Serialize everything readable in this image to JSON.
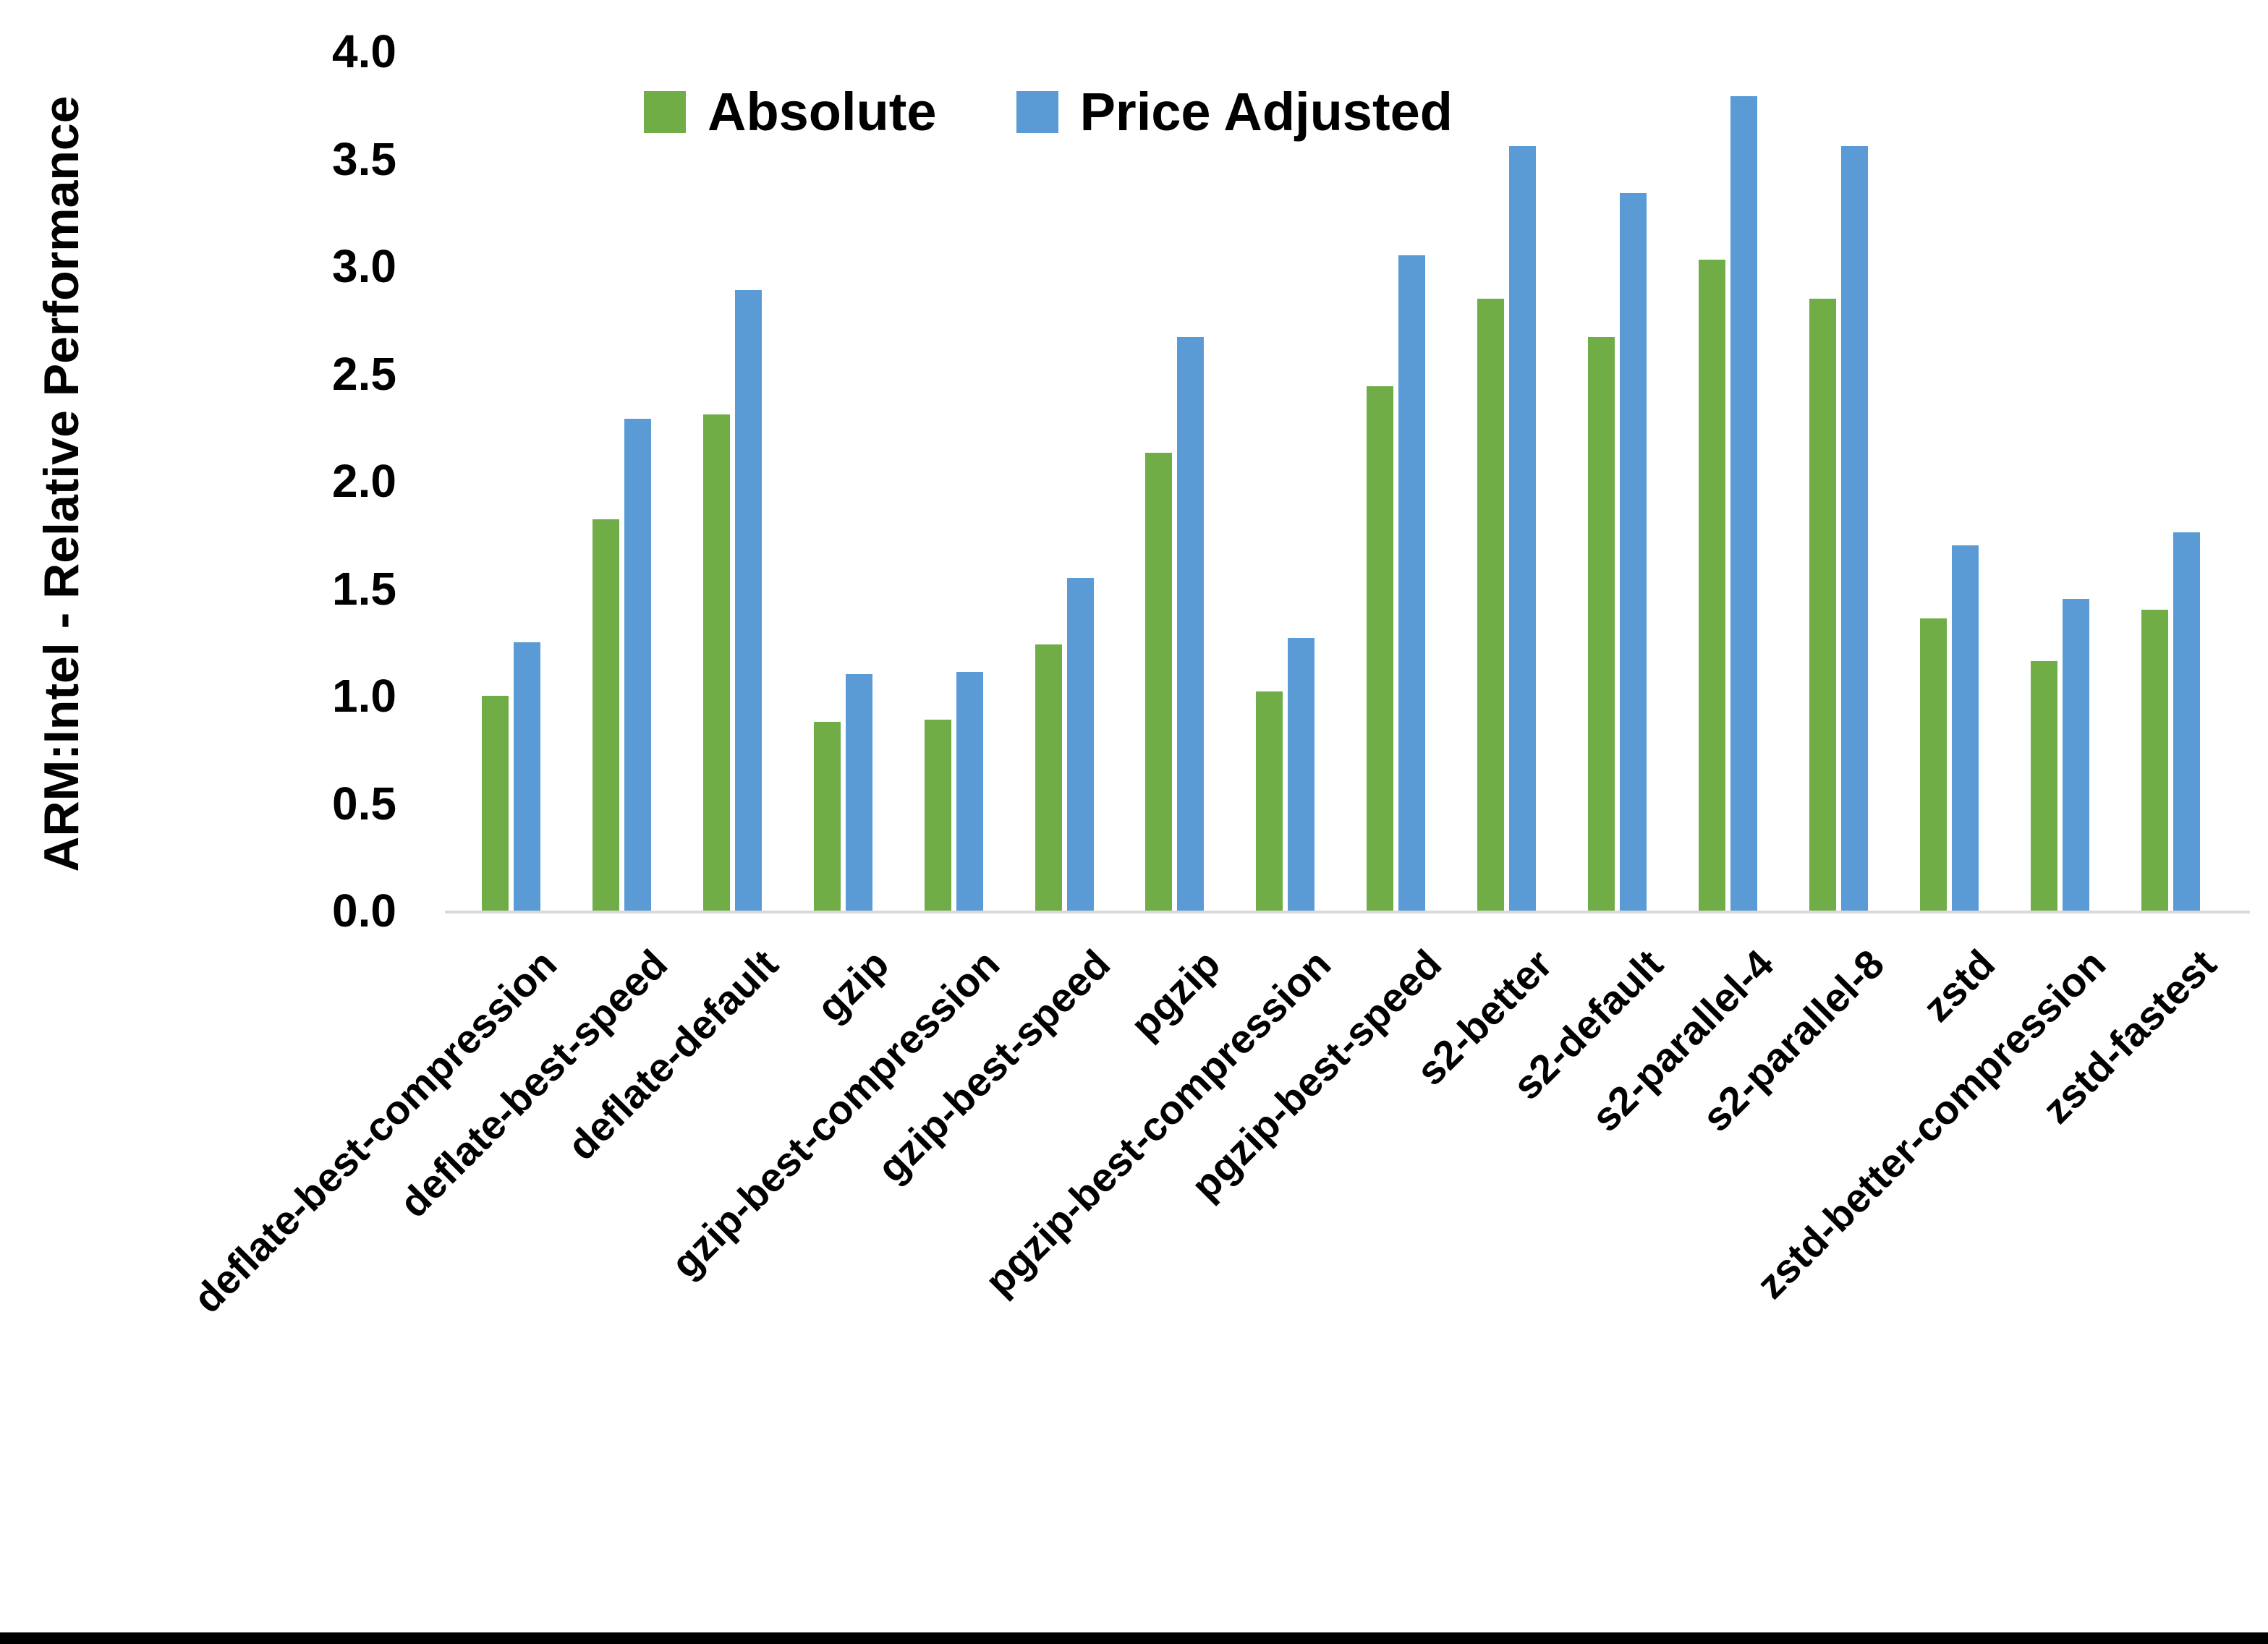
{
  "chart_data": {
    "type": "bar",
    "title": "",
    "xlabel": "",
    "ylabel": "ARM:Intel - Relative Performance",
    "ylim": [
      0,
      4
    ],
    "grid": false,
    "legend_position": "top-center",
    "ytick_labels": [
      "0.0",
      "0.5",
      "1.0",
      "1.5",
      "2.0",
      "2.5",
      "3.0",
      "3.5",
      "4.0"
    ],
    "categories": [
      "deflate-best-compression",
      "deflate-best-speed",
      "deflate-default",
      "gzip",
      "gzip-best-compression",
      "gzip-best-speed",
      "pgzip",
      "pgzip-best-compression",
      "pgzip-best-speed",
      "s2-better",
      "s2-default",
      "s2-parallel-4",
      "s2-parallel-8",
      "zstd",
      "zstd-better-compression",
      "zstd-fastest"
    ],
    "series": [
      {
        "name": "Absolute",
        "color": "#70AD47",
        "values": [
          1.0,
          1.82,
          2.31,
          0.88,
          0.89,
          1.24,
          2.13,
          1.02,
          2.44,
          2.85,
          2.67,
          3.03,
          2.85,
          1.36,
          1.16,
          1.4
        ]
      },
      {
        "name": "Price Adjusted",
        "color": "#5B9BD5",
        "values": [
          1.25,
          2.29,
          2.89,
          1.1,
          1.11,
          1.55,
          2.67,
          1.27,
          3.05,
          3.56,
          3.34,
          3.79,
          3.56,
          1.7,
          1.45,
          1.76
        ]
      }
    ]
  },
  "colors": {
    "axis_line": "#D9D9D9",
    "text": "#000000",
    "background": "#FFFFFF",
    "bottom_bar": "#000000"
  }
}
